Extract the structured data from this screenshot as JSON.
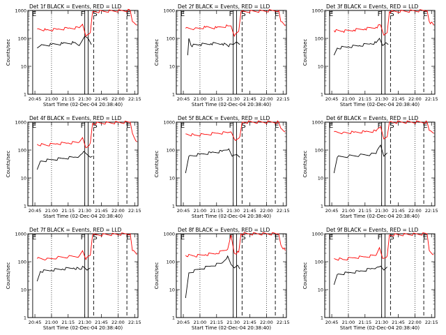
{
  "figure": {
    "xlabel": "Start Time (02-Dec-04 20:38:40)",
    "ylabel": "Counts/sec",
    "x_tick_labels": [
      "20:45",
      "21:00",
      "21:15",
      "21:30",
      "21:45",
      "22:00",
      "22:15"
    ],
    "y_tick_labels": [
      "1",
      "10",
      "100",
      "1000"
    ]
  },
  "chart_data": [
    {
      "type": "line",
      "title": "Det 1f BLACK = Events, RED = LLD",
      "scale_y": "log",
      "ylim": [
        1,
        1000
      ],
      "markers": [
        {
          "label": "E",
          "x": "20:43"
        },
        {
          "label": "F",
          "x": "21:30"
        },
        {
          "label": "S",
          "x": "21:38"
        },
        {
          "label": "E",
          "x": "22:08"
        }
      ],
      "series": [
        {
          "color": "#000000",
          "x": [
            "20:47",
            "20:50",
            "21:00",
            "21:10",
            "21:20",
            "21:25",
            "21:27",
            "21:30",
            "21:33",
            "21:36"
          ],
          "values": [
            45,
            55,
            60,
            65,
            70,
            55,
            75,
            120,
            100,
            60
          ]
        },
        {
          "color": "#ff0000",
          "x": [
            "20:47",
            "20:55",
            "21:05",
            "21:15",
            "21:25",
            "21:28",
            "21:31",
            "21:35",
            "21:37",
            "22:11",
            "22:13",
            "22:17"
          ],
          "values": [
            220,
            200,
            210,
            230,
            240,
            320,
            120,
            160,
            900,
            1000,
            400,
            300
          ]
        }
      ]
    },
    {
      "type": "line",
      "title": "Det 2f BLACK = Events, RED = LLD",
      "scale_y": "log",
      "ylim": [
        1,
        1000
      ],
      "markers": [
        {
          "label": "E",
          "x": "20:43"
        },
        {
          "label": "F",
          "x": "21:30"
        },
        {
          "label": "S",
          "x": "21:38"
        },
        {
          "label": "E",
          "x": "22:08"
        }
      ],
      "series": [
        {
          "color": "#000000",
          "x": [
            "20:49",
            "20:50",
            "20:52",
            "21:00",
            "21:10",
            "21:20",
            "21:25",
            "21:30",
            "21:33",
            "21:36"
          ],
          "values": [
            25,
            100,
            55,
            60,
            65,
            65,
            55,
            60,
            75,
            60
          ]
        },
        {
          "color": "#ff0000",
          "x": [
            "20:47",
            "20:55",
            "21:05",
            "21:15",
            "21:25",
            "21:28",
            "21:31",
            "21:35",
            "21:37",
            "22:11",
            "22:13",
            "22:17"
          ],
          "values": [
            230,
            220,
            250,
            240,
            280,
            280,
            120,
            180,
            900,
            1000,
            400,
            280
          ]
        }
      ]
    },
    {
      "type": "line",
      "title": "Det 3f BLACK = Events, RED = LLD",
      "scale_y": "log",
      "ylim": [
        1,
        1000
      ],
      "markers": [
        {
          "label": "E",
          "x": "20:43"
        },
        {
          "label": "F",
          "x": "21:30"
        },
        {
          "label": "S",
          "x": "21:38"
        },
        {
          "label": "E",
          "x": "22:08"
        }
      ],
      "series": [
        {
          "color": "#000000",
          "x": [
            "20:47",
            "20:50",
            "21:00",
            "21:10",
            "21:20",
            "21:25",
            "21:28",
            "21:31",
            "21:34",
            "21:36"
          ],
          "values": [
            25,
            45,
            50,
            55,
            65,
            70,
            100,
            55,
            70,
            60
          ]
        },
        {
          "color": "#ff0000",
          "x": [
            "20:47",
            "20:55",
            "21:05",
            "21:15",
            "21:25",
            "21:29",
            "21:32",
            "21:35",
            "21:37",
            "22:11",
            "22:13",
            "22:17"
          ],
          "values": [
            190,
            180,
            200,
            220,
            250,
            300,
            130,
            160,
            900,
            1000,
            400,
            300
          ]
        }
      ]
    },
    {
      "type": "line",
      "title": "Det 4f BLACK = Events, RED = LLD",
      "scale_y": "log",
      "ylim": [
        1,
        1000
      ],
      "markers": [
        {
          "label": "E",
          "x": "20:43"
        },
        {
          "label": "F",
          "x": "21:30"
        },
        {
          "label": "S",
          "x": "21:38"
        },
        {
          "label": "E",
          "x": "22:08"
        }
      ],
      "series": [
        {
          "color": "#000000",
          "x": [
            "20:47",
            "20:50",
            "21:00",
            "21:10",
            "21:20",
            "21:25",
            "21:29",
            "21:32",
            "21:35",
            "21:37"
          ],
          "values": [
            20,
            40,
            45,
            50,
            55,
            60,
            90,
            70,
            55,
            60
          ]
        },
        {
          "color": "#ff0000",
          "x": [
            "20:47",
            "20:55",
            "21:05",
            "21:15",
            "21:25",
            "21:28",
            "21:31",
            "21:35",
            "21:37",
            "22:11",
            "22:13",
            "22:17"
          ],
          "values": [
            160,
            150,
            170,
            180,
            190,
            280,
            120,
            180,
            900,
            1000,
            400,
            200
          ]
        }
      ]
    },
    {
      "type": "line",
      "title": "Det 5f BLACK = Events, RED = LLD",
      "scale_y": "log",
      "ylim": [
        1,
        1000
      ],
      "markers": [
        {
          "label": "E",
          "x": "20:43"
        },
        {
          "label": "F",
          "x": "21:30"
        },
        {
          "label": "S",
          "x": "21:38"
        },
        {
          "label": "E",
          "x": "22:08"
        }
      ],
      "series": [
        {
          "color": "#000000",
          "x": [
            "20:47",
            "20:50",
            "21:00",
            "21:10",
            "21:20",
            "21:26",
            "21:29",
            "21:33",
            "21:36"
          ],
          "values": [
            15,
            60,
            70,
            80,
            90,
            110,
            60,
            70,
            55
          ]
        },
        {
          "color": "#ff0000",
          "x": [
            "20:47",
            "20:55",
            "21:05",
            "21:15",
            "21:25",
            "21:28",
            "21:32",
            "21:36",
            "21:38",
            "22:11",
            "22:13",
            "22:17"
          ],
          "values": [
            380,
            340,
            360,
            400,
            420,
            450,
            220,
            300,
            1000,
            1000,
            600,
            450
          ]
        }
      ]
    },
    {
      "type": "line",
      "title": "Det 6f BLACK = Events, RED = LLD",
      "scale_y": "log",
      "ylim": [
        1,
        1000
      ],
      "markers": [
        {
          "label": "E",
          "x": "20:43"
        },
        {
          "label": "F",
          "x": "21:30"
        },
        {
          "label": "S",
          "x": "21:38"
        },
        {
          "label": "E",
          "x": "22:08"
        }
      ],
      "series": [
        {
          "color": "#000000",
          "x": [
            "20:47",
            "20:50",
            "21:00",
            "21:10",
            "21:20",
            "21:25",
            "21:29",
            "21:32",
            "21:35"
          ],
          "values": [
            15,
            55,
            60,
            65,
            70,
            75,
            150,
            60,
            80
          ]
        },
        {
          "color": "#ff0000",
          "x": [
            "20:47",
            "20:55",
            "21:05",
            "21:15",
            "21:25",
            "21:29",
            "21:32",
            "21:35",
            "21:37",
            "22:11",
            "22:13",
            "22:17"
          ],
          "values": [
            450,
            420,
            430,
            450,
            480,
            700,
            250,
            300,
            1000,
            1000,
            500,
            400
          ]
        }
      ]
    },
    {
      "type": "line",
      "title": "Det 7f BLACK = Events, RED = LLD",
      "scale_y": "log",
      "ylim": [
        1,
        1000
      ],
      "markers": [
        {
          "label": "E",
          "x": "20:43"
        },
        {
          "label": "F",
          "x": "21:30"
        },
        {
          "label": "S",
          "x": "21:38"
        },
        {
          "label": "E",
          "x": "22:08"
        }
      ],
      "series": [
        {
          "color": "#000000",
          "x": [
            "20:47",
            "20:50",
            "21:00",
            "21:10",
            "21:20",
            "21:25",
            "21:29",
            "21:32",
            "21:35"
          ],
          "values": [
            20,
            45,
            50,
            55,
            60,
            55,
            65,
            50,
            60
          ]
        },
        {
          "color": "#ff0000",
          "x": [
            "20:47",
            "20:55",
            "21:05",
            "21:15",
            "21:25",
            "21:28",
            "21:31",
            "21:35",
            "21:37",
            "22:11",
            "22:13",
            "22:17"
          ],
          "values": [
            130,
            120,
            140,
            150,
            160,
            250,
            120,
            170,
            900,
            1000,
            250,
            180
          ]
        }
      ]
    },
    {
      "type": "line",
      "title": "Det 8f BLACK = Events, RED = LLD",
      "scale_y": "log",
      "ylim": [
        1,
        1000
      ],
      "markers": [
        {
          "label": "E",
          "x": "20:43"
        },
        {
          "label": "F",
          "x": "21:30"
        },
        {
          "label": "S",
          "x": "21:38"
        },
        {
          "label": "E",
          "x": "22:08"
        }
      ],
      "series": [
        {
          "color": "#000000",
          "x": [
            "20:47",
            "20:50",
            "21:00",
            "21:10",
            "21:20",
            "21:25",
            "21:28",
            "21:31",
            "21:34",
            "21:36"
          ],
          "values": [
            5,
            40,
            55,
            70,
            90,
            160,
            80,
            60,
            75,
            55
          ]
        },
        {
          "color": "#ff0000",
          "x": [
            "20:47",
            "20:55",
            "21:05",
            "21:15",
            "21:25",
            "21:28",
            "21:31",
            "21:35",
            "21:37",
            "22:11",
            "22:13",
            "22:17"
          ],
          "values": [
            170,
            160,
            180,
            200,
            280,
            900,
            200,
            220,
            1000,
            1000,
            400,
            250
          ]
        }
      ]
    },
    {
      "type": "line",
      "title": "Det 9f BLACK = Events, RED = LLD",
      "scale_y": "log",
      "ylim": [
        1,
        1000
      ],
      "markers": [
        {
          "label": "E",
          "x": "20:43"
        },
        {
          "label": "F",
          "x": "21:30"
        },
        {
          "label": "S",
          "x": "21:38"
        },
        {
          "label": "E",
          "x": "22:08"
        }
      ],
      "series": [
        {
          "color": "#000000",
          "x": [
            "20:47",
            "20:50",
            "21:00",
            "21:10",
            "21:20",
            "21:25",
            "21:29",
            "21:32",
            "21:35"
          ],
          "values": [
            15,
            35,
            40,
            45,
            55,
            60,
            70,
            50,
            65
          ]
        },
        {
          "color": "#ff0000",
          "x": [
            "20:47",
            "20:55",
            "21:05",
            "21:15",
            "21:25",
            "21:28",
            "21:31",
            "21:35",
            "21:37",
            "22:11",
            "22:13",
            "22:17"
          ],
          "values": [
            130,
            120,
            140,
            150,
            170,
            320,
            130,
            160,
            900,
            1000,
            250,
            180
          ]
        }
      ]
    }
  ]
}
